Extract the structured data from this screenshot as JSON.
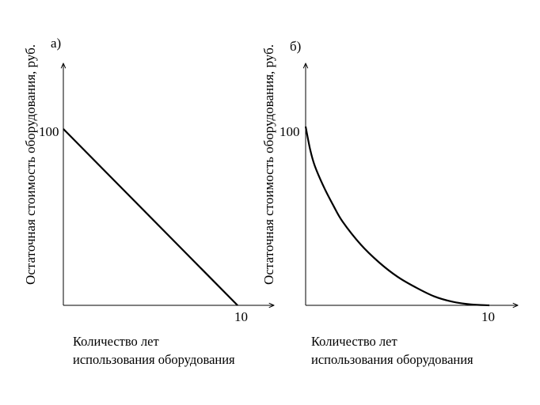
{
  "chart_data": [
    {
      "type": "line",
      "panel_label": "а)",
      "ylabel": "Остаточная стоимость оборудования, руб.",
      "xlabel_line1": "Количество лет",
      "xlabel_line2": "использования оборудования",
      "y_tick_label": "100",
      "x_tick_label": "10",
      "xlim": [
        0,
        10
      ],
      "ylim": [
        0,
        100
      ],
      "series": [
        {
          "x": [
            0,
            10
          ],
          "y": [
            100,
            0
          ]
        }
      ]
    },
    {
      "type": "line",
      "panel_label": "б)",
      "ylabel": "Остаточная стоимость оборудования, руб.",
      "xlabel_line1": "Количество лет",
      "xlabel_line2": "использования оборудования",
      "y_tick_label": "100",
      "x_tick_label": "10",
      "xlim": [
        0,
        10
      ],
      "ylim": [
        0,
        100
      ],
      "series": [
        {
          "x": [
            0,
            0.25,
            0.5,
            1,
            1.5,
            2,
            3,
            4,
            5,
            6,
            7,
            8,
            9,
            10
          ],
          "y": [
            100,
            87,
            78,
            66,
            56,
            47,
            34,
            24,
            16,
            10,
            5,
            2,
            0.5,
            0
          ]
        }
      ]
    }
  ]
}
